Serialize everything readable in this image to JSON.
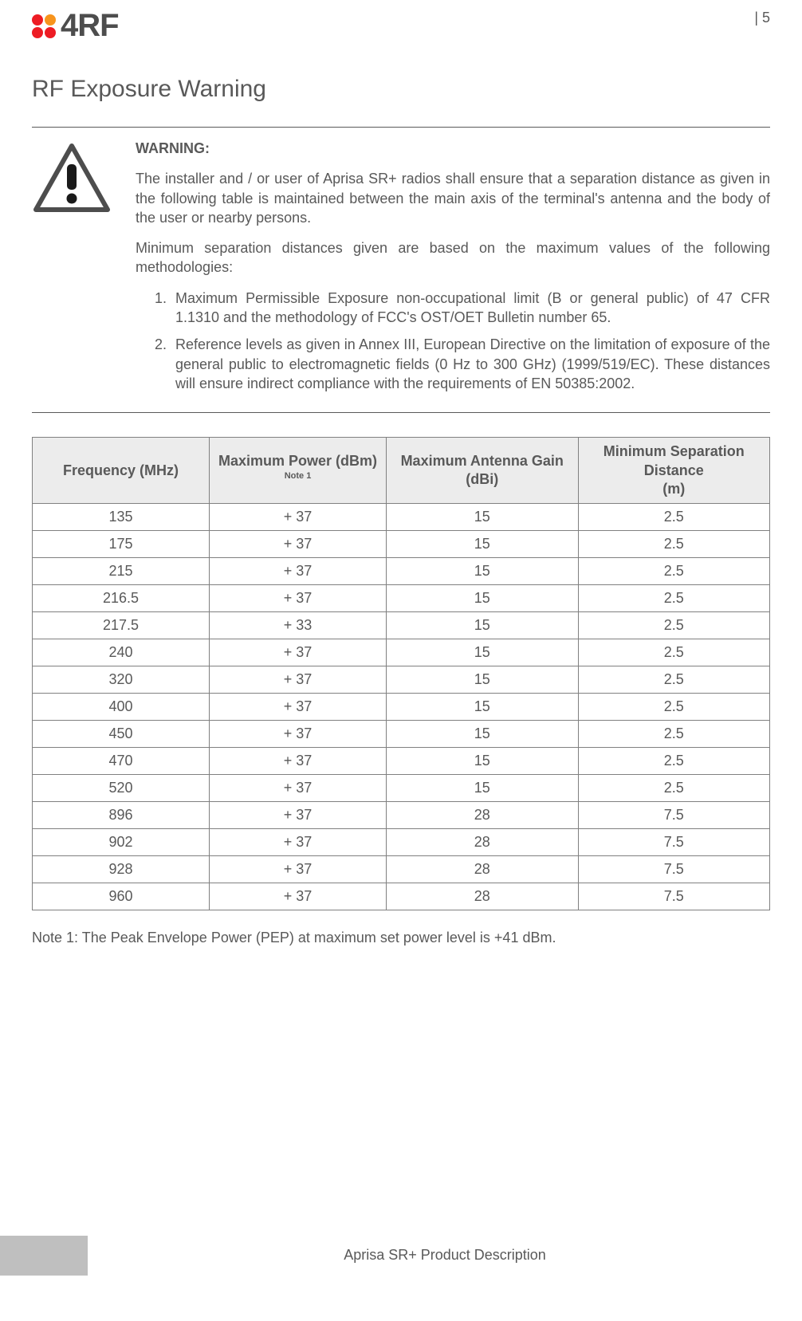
{
  "logo": {
    "text": "4RF",
    "dot_colors": [
      "#ed1c24",
      "#f7941d",
      "#ed1c24",
      "#ed1c24"
    ],
    "text_color": "#4d4d4d"
  },
  "page_number": "| 5",
  "section_title": "RF Exposure Warning",
  "warning": {
    "heading": "WARNING:",
    "body": "The installer and / or user of Aprisa SR+ radios shall ensure that a separation distance as given in the following table is maintained between the main axis of the terminal's antenna and the body of the user or nearby persons.",
    "intro": "Minimum separation distances given are based on the maximum values of the following methodologies:",
    "items": [
      "Maximum Permissible Exposure non-occupational limit (B or general public) of 47 CFR 1.1310 and the methodology of FCC's OST/OET Bulletin number 65.",
      "Reference levels as given in Annex III, European Directive on the limitation of exposure of the general public to electromagnetic fields (0 Hz to 300 GHz) (1999/519/EC). These distances will ensure indirect compliance with the requirements of EN 50385:2002."
    ],
    "icon": {
      "triangle_stroke": "#4d4d4d",
      "triangle_fill": "#ffffff",
      "bang_fill": "#1a1a1a"
    }
  },
  "table": {
    "headers": {
      "freq": "Frequency (MHz)",
      "power_pre": "Maximum Power (dBm) ",
      "power_sup": "Note 1",
      "gain": "Maximum Antenna Gain (dBi)",
      "sep_l1": "Minimum Separation Distance",
      "sep_l2": "(m)"
    },
    "header_bg": "#ececec",
    "border_color": "#808080",
    "col_widths": [
      "24%",
      "24%",
      "26%",
      "26%"
    ],
    "rows": [
      [
        "135",
        "+ 37",
        "15",
        "2.5"
      ],
      [
        "175",
        "+ 37",
        "15",
        "2.5"
      ],
      [
        "215",
        "+ 37",
        "15",
        "2.5"
      ],
      [
        "216.5",
        "+ 37",
        "15",
        "2.5"
      ],
      [
        "217.5",
        "+ 33",
        "15",
        "2.5"
      ],
      [
        "240",
        "+ 37",
        "15",
        "2.5"
      ],
      [
        "320",
        "+ 37",
        "15",
        "2.5"
      ],
      [
        "400",
        "+ 37",
        "15",
        "2.5"
      ],
      [
        "450",
        "+ 37",
        "15",
        "2.5"
      ],
      [
        "470",
        "+ 37",
        "15",
        "2.5"
      ],
      [
        "520",
        "+ 37",
        "15",
        "2.5"
      ],
      [
        "896",
        "+ 37",
        "28",
        "7.5"
      ],
      [
        "902",
        "+ 37",
        "28",
        "7.5"
      ],
      [
        "928",
        "+ 37",
        "28",
        "7.5"
      ],
      [
        "960",
        "+ 37",
        "28",
        "7.5"
      ]
    ]
  },
  "note1": "Note 1: The Peak Envelope Power (PEP) at maximum set power level is +41 dBm.",
  "footer_title": "Aprisa SR+ Product Description",
  "footer_bar_color": "#bfbfbf"
}
